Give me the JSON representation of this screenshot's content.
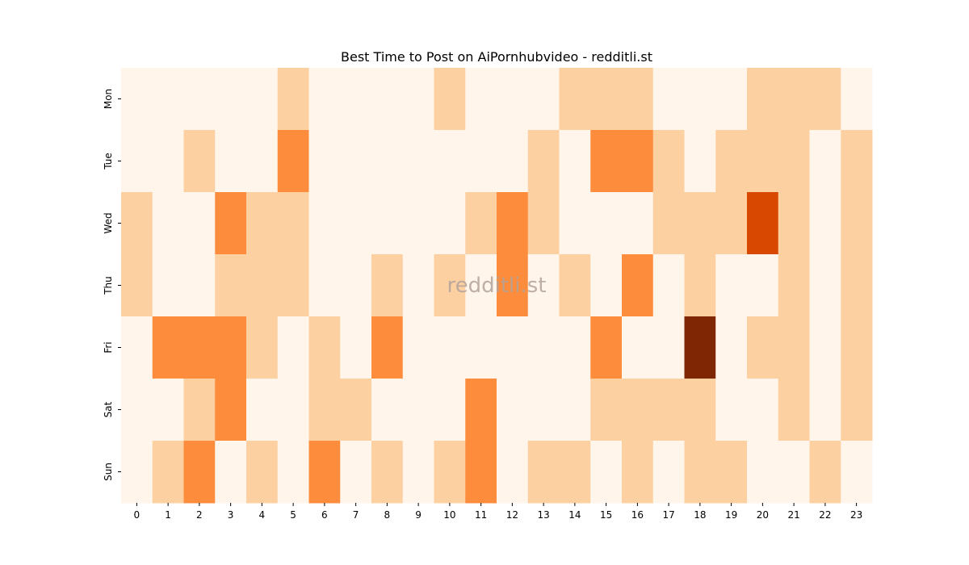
{
  "chart_data": {
    "type": "heatmap",
    "title": "Best Time to Post on AiPornhubvideo - redditli.st",
    "watermark": "redditli.st",
    "xlabel": "",
    "ylabel": "",
    "x": [
      "0",
      "1",
      "2",
      "3",
      "4",
      "5",
      "6",
      "7",
      "8",
      "9",
      "10",
      "11",
      "12",
      "13",
      "14",
      "15",
      "16",
      "17",
      "18",
      "19",
      "20",
      "21",
      "22",
      "23"
    ],
    "y": [
      "Mon",
      "Tue",
      "Wed",
      "Thu",
      "Fri",
      "Sat",
      "Sun"
    ],
    "values": [
      [
        0,
        0,
        0,
        0,
        0,
        1,
        0,
        0,
        0,
        0,
        1,
        0,
        0,
        0,
        1,
        1,
        1,
        0,
        0,
        0,
        1,
        1,
        1,
        0
      ],
      [
        0,
        0,
        1,
        0,
        0,
        2,
        0,
        0,
        0,
        0,
        0,
        0,
        0,
        1,
        0,
        2,
        2,
        1,
        0,
        1,
        1,
        1,
        0,
        1
      ],
      [
        1,
        0,
        0,
        2,
        1,
        1,
        0,
        0,
        0,
        0,
        0,
        1,
        2,
        1,
        0,
        0,
        0,
        1,
        1,
        1,
        3,
        1,
        0,
        1
      ],
      [
        1,
        0,
        0,
        1,
        1,
        1,
        0,
        0,
        1,
        0,
        1,
        0,
        2,
        0,
        1,
        0,
        2,
        0,
        1,
        0,
        0,
        1,
        0,
        1
      ],
      [
        0,
        2,
        2,
        2,
        1,
        0,
        1,
        0,
        2,
        0,
        0,
        0,
        0,
        0,
        0,
        2,
        0,
        0,
        4,
        0,
        1,
        1,
        0,
        1
      ],
      [
        0,
        0,
        1,
        2,
        0,
        0,
        1,
        1,
        0,
        0,
        0,
        2,
        0,
        0,
        0,
        1,
        1,
        1,
        1,
        0,
        0,
        1,
        0,
        1
      ],
      [
        0,
        1,
        2,
        0,
        1,
        0,
        2,
        0,
        1,
        0,
        1,
        2,
        0,
        1,
        1,
        0,
        1,
        0,
        1,
        1,
        0,
        0,
        1,
        0
      ]
    ],
    "color_scale": [
      "#fff5eb",
      "#fdd0a2",
      "#fd8d3c",
      "#d94801",
      "#7f2704"
    ],
    "legend": "none",
    "grid": false
  }
}
